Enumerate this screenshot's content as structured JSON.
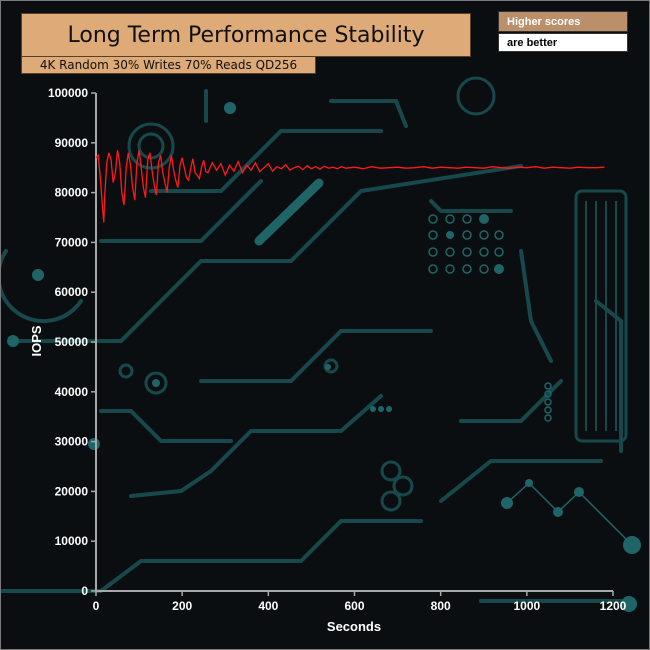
{
  "header": {
    "title": "Long Term Performance Stability",
    "subtitle": "4K Random 30% Writes 70% Reads QD256",
    "badge_top": "Higher scores",
    "badge_bottom": "are better"
  },
  "colors": {
    "series": "#ff1a1a",
    "circuit": "#17494c",
    "axis": "#a8a8a8",
    "title_bg": "#deaa78"
  },
  "chart_data": {
    "type": "line",
    "title": "Long Term Performance Stability",
    "subtitle": "4K Random 30% Writes 70% Reads QD256",
    "xlabel": "Seconds",
    "ylabel": "IOPS",
    "xlim": [
      0,
      1200
    ],
    "ylim": [
      0,
      100000
    ],
    "xticks": [
      0,
      200,
      400,
      600,
      800,
      1000,
      1200
    ],
    "yticks": [
      0,
      10000,
      20000,
      30000,
      40000,
      50000,
      60000,
      70000,
      80000,
      90000,
      100000
    ],
    "grid": false,
    "legend": "none",
    "series": [
      {
        "x": [
          0,
          5,
          10,
          15,
          18,
          20,
          25,
          30,
          35,
          40,
          45,
          50,
          55,
          60,
          65,
          70,
          75,
          80,
          85,
          90,
          95,
          100,
          105,
          110,
          115,
          120,
          125,
          130,
          135,
          140,
          145,
          150,
          155,
          160,
          165,
          170,
          175,
          180,
          185,
          190,
          195,
          200,
          205,
          210,
          215,
          220,
          225,
          230,
          235,
          240,
          245,
          250,
          255,
          260,
          270,
          280,
          290,
          300,
          310,
          320,
          330,
          340,
          350,
          360,
          370,
          380,
          390,
          400,
          410,
          420,
          430,
          440,
          450,
          460,
          470,
          480,
          490,
          500,
          510,
          520,
          530,
          540,
          550,
          560,
          570,
          580,
          590,
          600,
          620,
          640,
          660,
          680,
          700,
          720,
          740,
          760,
          780,
          800,
          820,
          840,
          860,
          880,
          900,
          920,
          940,
          960,
          980,
          1000,
          1020,
          1040,
          1060,
          1080,
          1100,
          1120,
          1140,
          1160,
          1180
        ],
        "y": [
          87000,
          87500,
          83000,
          77000,
          74000,
          79000,
          86000,
          88000,
          86500,
          82000,
          84000,
          88500,
          86000,
          80000,
          77500,
          85000,
          88000,
          85500,
          81000,
          78500,
          86000,
          88500,
          85000,
          81000,
          79000,
          86500,
          88000,
          84500,
          81500,
          79500,
          86000,
          87500,
          84000,
          82000,
          80000,
          85000,
          87500,
          84500,
          82500,
          81000,
          85500,
          87000,
          85000,
          83000,
          82500,
          85000,
          86800,
          84000,
          83500,
          82800,
          85200,
          86500,
          84200,
          84000,
          86000,
          84500,
          85800,
          83500,
          85500,
          84300,
          86200,
          84000,
          85500,
          84500,
          86000,
          84200,
          85000,
          85800,
          84300,
          85200,
          84800,
          85600,
          84500,
          85000,
          85300,
          84600,
          85400,
          84800,
          85200,
          84700,
          85300,
          84900,
          85100,
          84800,
          85200,
          84900,
          85000,
          85100,
          84800,
          85200,
          84900,
          85000,
          85100,
          84900,
          85000,
          85200,
          84900,
          85100,
          85000,
          84900,
          85100,
          85000,
          84900,
          85200,
          85000,
          84900,
          85100,
          85000,
          85200,
          84900,
          85100,
          85000,
          84900,
          85100,
          85000,
          85000,
          85100
        ]
      }
    ]
  }
}
